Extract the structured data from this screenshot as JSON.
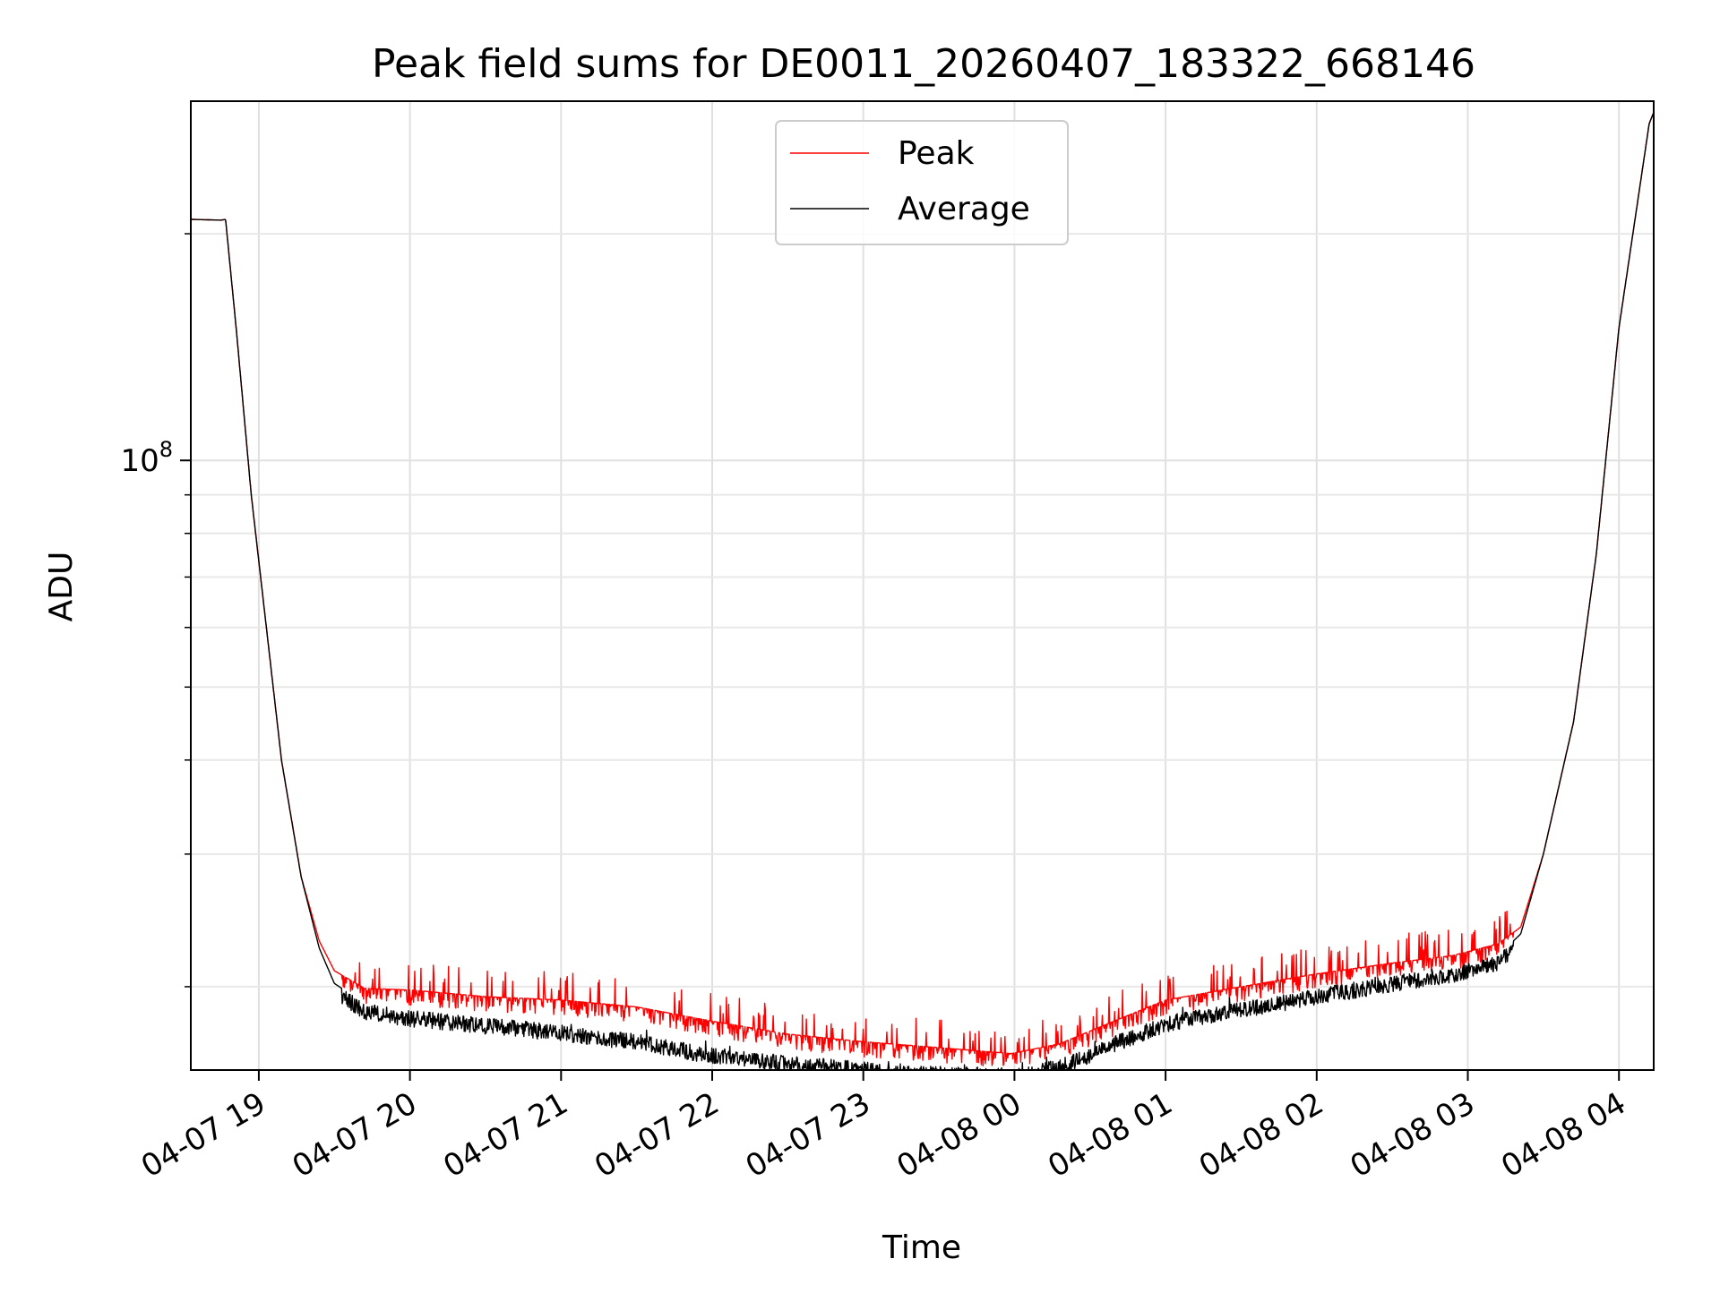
{
  "chart_data": {
    "type": "line",
    "title": "Peak field sums for DE0011_20260407_183322_668146",
    "xlabel": "Time",
    "ylabel": "ADU",
    "yscale": "log",
    "ylim": [
      15500000,
      300000000
    ],
    "xlim_hours_from_0407_1800": [
      0.55,
      10.23
    ],
    "grid": true,
    "legend_position": "upper center",
    "x_ticks": [
      {
        "hour": 1,
        "label": "04-07 19"
      },
      {
        "hour": 2,
        "label": "04-07 20"
      },
      {
        "hour": 3,
        "label": "04-07 21"
      },
      {
        "hour": 4,
        "label": "04-07 22"
      },
      {
        "hour": 5,
        "label": "04-07 23"
      },
      {
        "hour": 6,
        "label": "04-08 00"
      },
      {
        "hour": 7,
        "label": "04-08 01"
      },
      {
        "hour": 8,
        "label": "04-08 02"
      },
      {
        "hour": 9,
        "label": "04-08 03"
      },
      {
        "hour": 10,
        "label": "04-08 04"
      }
    ],
    "y_major_ticks": [
      {
        "value": 100000000,
        "label_base": "10",
        "label_exp": "8"
      }
    ],
    "y_minor_ticks": [
      20000000,
      30000000,
      40000000,
      50000000,
      60000000,
      70000000,
      80000000,
      90000000,
      200000000
    ],
    "series": [
      {
        "name": "Peak",
        "color": "#ff0000",
        "x_hours": [
          0.55,
          0.75,
          0.78,
          0.85,
          0.95,
          1.05,
          1.15,
          1.28,
          1.4,
          1.5,
          1.7,
          2.0,
          2.5,
          3.0,
          3.5,
          4.0,
          4.5,
          5.0,
          5.5,
          5.98,
          6.3,
          6.6,
          7.0,
          7.5,
          8.0,
          8.5,
          8.9,
          9.2,
          9.35,
          9.5,
          9.7,
          9.85,
          10.0,
          10.2,
          10.23
        ],
        "values": [
          209000000,
          208500000,
          209000000,
          150000000,
          90000000,
          60000000,
          40000000,
          28000000,
          23000000,
          21000000,
          19900000,
          19800000,
          19400000,
          19200000,
          18800000,
          18000000,
          17300000,
          16900000,
          16600000,
          16300000,
          16800000,
          17800000,
          19200000,
          20000000,
          20800000,
          21500000,
          22000000,
          22800000,
          24000000,
          30000000,
          45000000,
          75000000,
          150000000,
          280000000,
          290000000
        ]
      },
      {
        "name": "Average",
        "color": "#000000",
        "x_hours": [
          0.55,
          0.75,
          0.78,
          0.85,
          0.95,
          1.05,
          1.15,
          1.28,
          1.4,
          1.5,
          1.7,
          2.0,
          2.5,
          3.0,
          3.5,
          4.0,
          4.5,
          5.0,
          5.5,
          5.98,
          6.3,
          6.6,
          7.0,
          7.5,
          8.0,
          8.5,
          8.9,
          9.2,
          9.35,
          9.5,
          9.7,
          9.85,
          10.0,
          10.2,
          10.23
        ],
        "values": [
          209000000,
          208500000,
          209000000,
          150000000,
          90000000,
          60000000,
          40000000,
          28000000,
          22500000,
          20200000,
          19000000,
          18600000,
          18200000,
          17800000,
          17300000,
          16600000,
          16200000,
          15900000,
          15700000,
          15600000,
          16000000,
          17000000,
          18300000,
          19100000,
          19900000,
          20700000,
          21300000,
          22000000,
          23500000,
          30000000,
          45000000,
          75000000,
          150000000,
          280000000,
          290000000
        ]
      }
    ]
  }
}
